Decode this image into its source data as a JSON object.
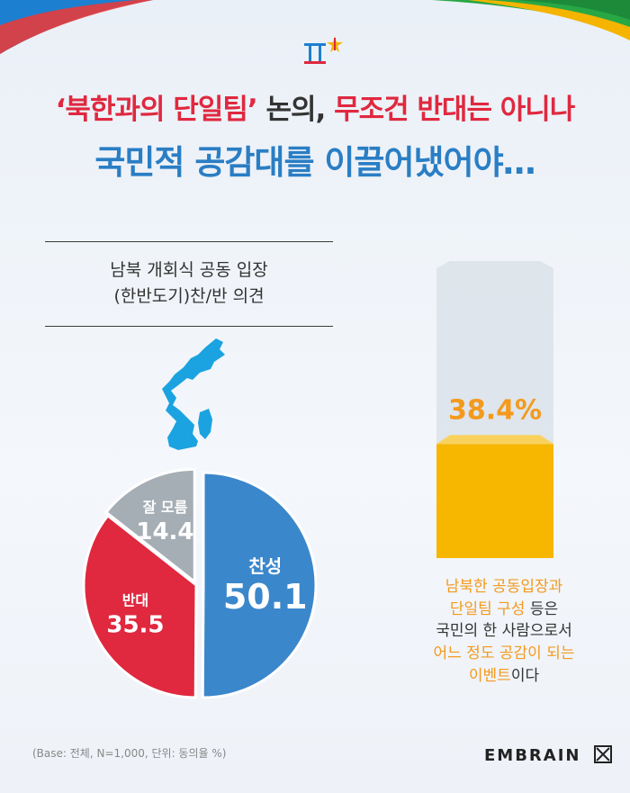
{
  "headline": {
    "line1_part1": "‘북한과의 단일팀’",
    "line1_part2": " 논의, ",
    "line1_part3": "무조건 반대는 아니나",
    "line2": "국민적 공감대를 이끌어냈어야…"
  },
  "chart_title": {
    "line1": "남북 개회식 공동 입장",
    "line2": "(한반도기)찬/반 의견"
  },
  "colors": {
    "agree": "#3b87cb",
    "disagree": "#e0283f",
    "unknown": "#a5adb5",
    "bar_fill": "#f7b600",
    "bar_top": "#f9d25d",
    "bar_track": "#d6dee6",
    "map": "#1aa3e0",
    "accent_orange": "#f39a1e"
  },
  "chart_data": [
    {
      "type": "pie",
      "categories": [
        "찬성",
        "반대",
        "잘 모름"
      ],
      "values": [
        50.1,
        35.5,
        14.4
      ],
      "labels": [
        "50.1",
        "35.5",
        "14.4"
      ],
      "unit": "%"
    },
    {
      "type": "bar",
      "values": [
        38.4
      ],
      "label": "38.4%",
      "ylim": [
        0,
        100
      ]
    }
  ],
  "note": {
    "line1": "남북한 공동입장과",
    "line2_orange": "단일팀 구성",
    "line2_rest": " 등은",
    "line3": "국민의 한 사람으로서",
    "line4": "어느 정도 공감이 되는",
    "line5_orange": "이벤트",
    "line5_rest": "이다"
  },
  "footer": {
    "base": "(Base: 전체, N=1,000, 단위: 동의율 %)",
    "brand": "EMBRAIN"
  },
  "icons": {
    "logo": "pyeongchang-logo-icon",
    "brand_mark": "embrain-mark-icon",
    "map": "korea-map-icon"
  }
}
